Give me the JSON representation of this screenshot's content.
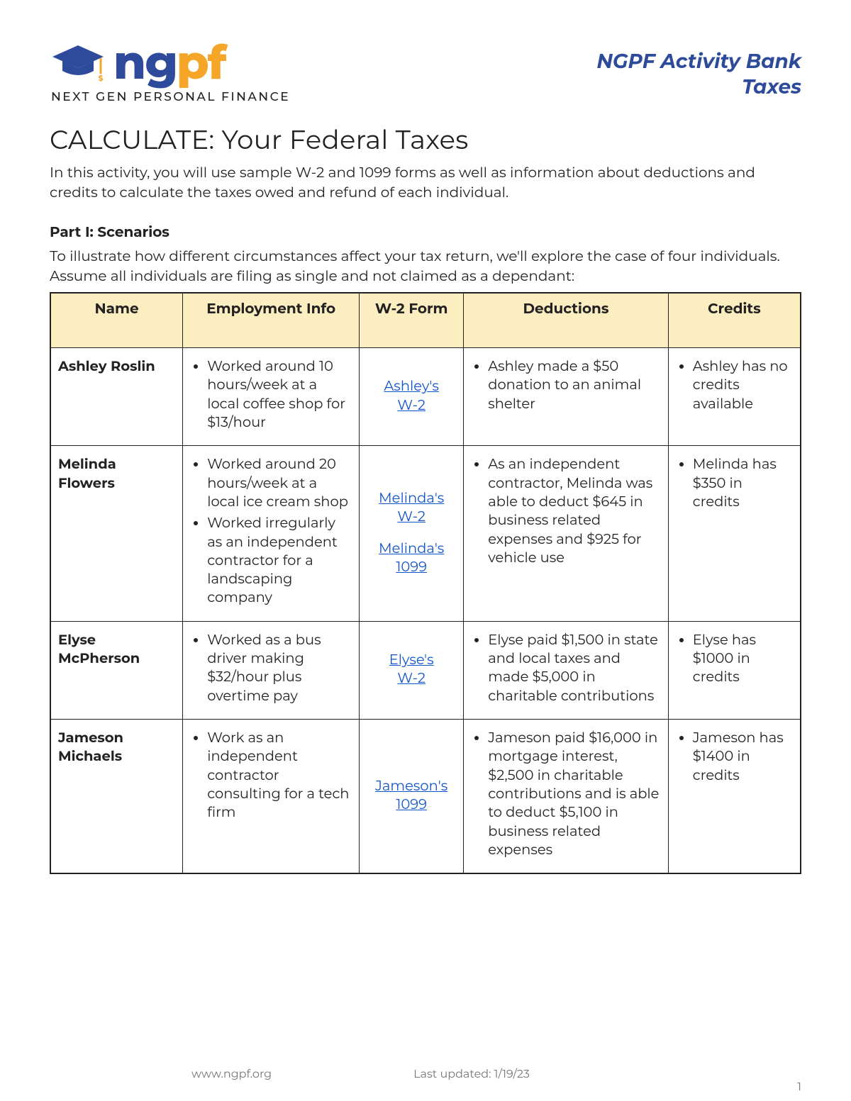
{
  "header": {
    "logo_text_1": "ng",
    "logo_text_2": "pf",
    "logo_tagline": "NEXT GEN PERSONAL FINANCE",
    "right_line1": "NGPF Activity Bank",
    "right_line2": "Taxes"
  },
  "title": "CALCULATE: Your Federal Taxes",
  "intro": "In this activity, you will use sample W-2 and 1099 forms as well as information about deductions and credits to calculate the taxes owed and refund of each individual.",
  "part1": {
    "heading": "Part I: Scenarios",
    "desc": "To illustrate how different circumstances affect your tax return, we'll explore the case of four individuals.  Assume all individuals are filing as single and not claimed as a dependant:"
  },
  "table": {
    "columns": [
      "Name",
      "Employment Info",
      "W-2 Form",
      "Deductions",
      "Credits"
    ],
    "header_bg": "#fdeec1",
    "border_color": "#222222",
    "link_color": "#1155cc",
    "rows": [
      {
        "name": "Ashley Roslin",
        "employment": [
          "Worked around 10 hours/week at a local coffee shop for $13/hour"
        ],
        "forms": [
          {
            "label": "Ashley's W-2"
          }
        ],
        "deductions": [
          "Ashley made a $50 donation to an animal shelter"
        ],
        "credits": [
          "Ashley has no credits available"
        ]
      },
      {
        "name": "Melinda Flowers",
        "employment": [
          "Worked around 20 hours/week at a local ice cream shop",
          "Worked irregularly as an independent contractor for a landscaping company"
        ],
        "forms": [
          {
            "label": "Melinda's W-2"
          },
          {
            "label": "Melinda's 1099"
          }
        ],
        "deductions": [
          "As an independent contractor, Melinda was able to deduct $645 in business related expenses and $925 for vehicle use"
        ],
        "credits": [
          "Melinda has $350 in credits"
        ]
      },
      {
        "name": "Elyse McPherson",
        "employment": [
          "Worked as a bus driver making $32/hour plus overtime pay"
        ],
        "forms": [
          {
            "label": "Elyse's W-2"
          }
        ],
        "deductions": [
          "Elyse paid $1,500 in state and local taxes and made $5,000 in charitable contributions"
        ],
        "credits": [
          "Elyse has $1000 in credits"
        ]
      },
      {
        "name": "Jameson Michaels",
        "employment": [
          "Work as an independent contractor consulting for a tech firm"
        ],
        "forms": [
          {
            "label": "Jameson's 1099"
          }
        ],
        "deductions": [
          "Jameson paid $16,000 in mortgage interest, $2,500 in charitable contributions and is able to deduct $5,100 in business related expenses"
        ],
        "credits": [
          "Jameson has $1400 in credits"
        ]
      }
    ]
  },
  "footer": {
    "url": "www.ngpf.org",
    "updated": "Last updated: 1/19/23",
    "page": "1"
  },
  "colors": {
    "brand_blue": "#2d4b9a",
    "brand_orange": "#f5a629",
    "text": "#222222",
    "footer_text": "#777777"
  }
}
